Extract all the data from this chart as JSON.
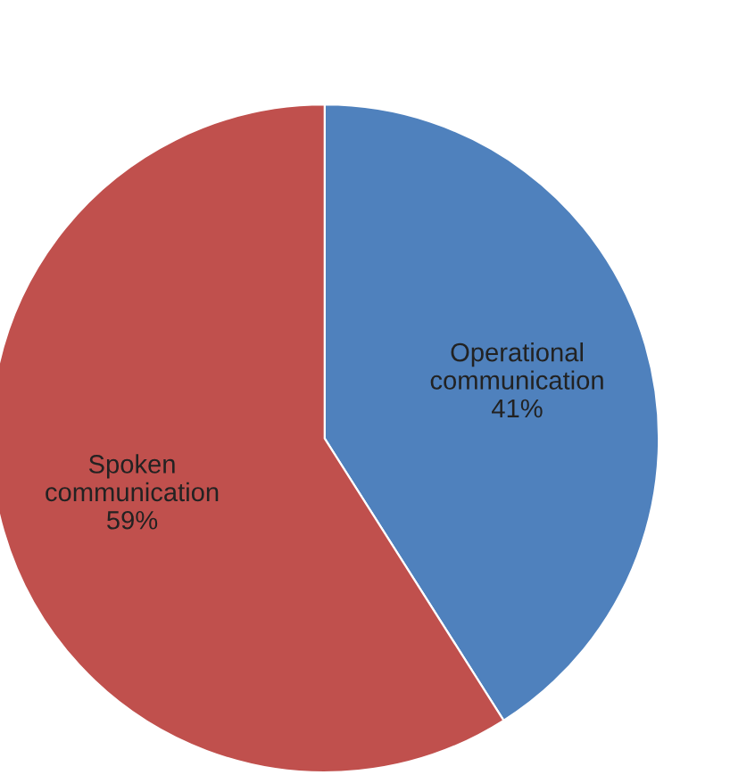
{
  "chart_data": {
    "type": "pie",
    "categories": [
      "Operational communication",
      "Spoken communication"
    ],
    "values": [
      41,
      59
    ],
    "colors": [
      "#4f81bd",
      "#c0504d"
    ],
    "value_labels": [
      "41%",
      "59%"
    ],
    "legend": false
  }
}
